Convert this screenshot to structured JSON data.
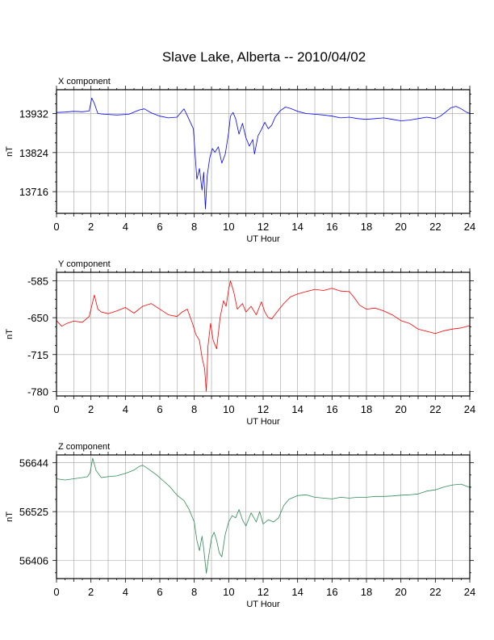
{
  "title": "Slave Lake, Alberta -- 2010/04/02",
  "chart_data": [
    {
      "type": "line",
      "panel_label": "X component",
      "xlabel": "UT Hour",
      "ylabel": "nT",
      "xlim": [
        0,
        24
      ],
      "ylim": [
        13656,
        13998
      ],
      "x_ticks": [
        0,
        2,
        4,
        6,
        8,
        10,
        12,
        14,
        16,
        18,
        20,
        22,
        24
      ],
      "y_ticks": [
        13932,
        13824,
        13716
      ],
      "grid": true,
      "color": "#0000ff",
      "series": [
        {
          "x": [
            0,
            0.5,
            1,
            1.5,
            1.9,
            2.05,
            2.2,
            2.4,
            2.8,
            3.5,
            4.2,
            4.8,
            5.1,
            5.5,
            6,
            6.5,
            7,
            7.4,
            7.6,
            7.8,
            7.95,
            8.05,
            8.15,
            8.3,
            8.45,
            8.55,
            8.65,
            8.75,
            8.9,
            9.05,
            9.2,
            9.4,
            9.6,
            9.8,
            9.9,
            10,
            10.1,
            10.25,
            10.4,
            10.6,
            10.8,
            11,
            11.2,
            11.4,
            11.5,
            11.7,
            11.9,
            12.1,
            12.3,
            12.5,
            12.7,
            13,
            13.3,
            13.6,
            14,
            14.5,
            15,
            15.5,
            16,
            16.5,
            17,
            17.5,
            18,
            18.5,
            19,
            19.5,
            20,
            20.5,
            21,
            21.5,
            22,
            22.3,
            22.6,
            22.9,
            23.2,
            23.5,
            23.8,
            24
          ],
          "y": [
            13935,
            13936,
            13938,
            13937,
            13939,
            13975,
            13960,
            13932,
            13930,
            13928,
            13930,
            13942,
            13945,
            13934,
            13925,
            13920,
            13922,
            13945,
            13926,
            13905,
            13890,
            13820,
            13750,
            13780,
            13720,
            13770,
            13668,
            13760,
            13810,
            13835,
            13825,
            13840,
            13795,
            13820,
            13850,
            13880,
            13925,
            13935,
            13918,
            13875,
            13905,
            13865,
            13842,
            13860,
            13820,
            13870,
            13888,
            13908,
            13890,
            13900,
            13922,
            13940,
            13950,
            13946,
            13938,
            13932,
            13930,
            13928,
            13925,
            13920,
            13922,
            13918,
            13916,
            13918,
            13920,
            13916,
            13912,
            13914,
            13918,
            13922,
            13918,
            13925,
            13936,
            13948,
            13952,
            13945,
            13936,
            13932
          ]
        }
      ]
    },
    {
      "type": "line",
      "panel_label": "Y component",
      "xlabel": "UT Hour",
      "ylabel": "nT",
      "xlim": [
        0,
        24
      ],
      "ylim": [
        -788,
        -570
      ],
      "x_ticks": [
        0,
        2,
        4,
        6,
        8,
        10,
        12,
        14,
        16,
        18,
        20,
        22,
        24
      ],
      "y_ticks": [
        -585,
        -650,
        -715,
        -780
      ],
      "grid": true,
      "color": "#ff0000",
      "series": [
        {
          "x": [
            0,
            0.3,
            0.6,
            1,
            1.5,
            1.9,
            2.2,
            2.4,
            2.6,
            3,
            3.5,
            4,
            4.5,
            5,
            5.5,
            6,
            6.5,
            7,
            7.3,
            7.6,
            7.9,
            8.1,
            8.3,
            8.45,
            8.6,
            8.7,
            8.8,
            8.95,
            9.1,
            9.3,
            9.5,
            9.7,
            9.85,
            10,
            10.1,
            10.3,
            10.5,
            10.8,
            11,
            11.3,
            11.6,
            11.9,
            12.1,
            12.3,
            12.5,
            12.8,
            13.2,
            13.6,
            14,
            14.5,
            15,
            15.5,
            16,
            16.5,
            17,
            17.3,
            17.6,
            18,
            18.5,
            19,
            19.5,
            20,
            20.5,
            21,
            21.5,
            22,
            22.5,
            23,
            23.5,
            24
          ],
          "y": [
            -655,
            -665,
            -660,
            -656,
            -658,
            -648,
            -610,
            -635,
            -640,
            -643,
            -638,
            -632,
            -642,
            -630,
            -625,
            -635,
            -645,
            -648,
            -640,
            -635,
            -660,
            -680,
            -690,
            -720,
            -740,
            -780,
            -700,
            -660,
            -690,
            -705,
            -650,
            -620,
            -630,
            -600,
            -585,
            -605,
            -635,
            -625,
            -640,
            -630,
            -645,
            -622,
            -640,
            -650,
            -652,
            -640,
            -625,
            -613,
            -608,
            -604,
            -600,
            -602,
            -598,
            -603,
            -604,
            -615,
            -628,
            -635,
            -633,
            -638,
            -645,
            -655,
            -660,
            -670,
            -674,
            -678,
            -673,
            -670,
            -668,
            -664
          ]
        }
      ]
    },
    {
      "type": "line",
      "panel_label": "Z component",
      "xlabel": "UT Hour",
      "ylabel": "nT",
      "xlim": [
        0,
        24
      ],
      "ylim": [
        56362,
        56663
      ],
      "x_ticks": [
        0,
        2,
        4,
        6,
        8,
        10,
        12,
        14,
        16,
        18,
        20,
        22,
        24
      ],
      "y_ticks": [
        56644,
        56525,
        56406
      ],
      "grid": true,
      "color": "#2e8b57",
      "series": [
        {
          "x": [
            0,
            0.5,
            1,
            1.5,
            1.8,
            1.95,
            2.1,
            2.3,
            2.6,
            3,
            3.5,
            4,
            4.5,
            4.8,
            5,
            5.3,
            5.8,
            6.2,
            6.6,
            7,
            7.4,
            7.7,
            8,
            8.15,
            8.3,
            8.45,
            8.55,
            8.7,
            8.85,
            9,
            9.15,
            9.3,
            9.45,
            9.6,
            9.8,
            10,
            10.2,
            10.4,
            10.6,
            10.8,
            11,
            11.3,
            11.6,
            11.8,
            12,
            12.3,
            12.6,
            12.9,
            13.2,
            13.5,
            14,
            14.5,
            15,
            15.5,
            16,
            16.5,
            17,
            17.5,
            18,
            18.5,
            19,
            19.5,
            20,
            20.5,
            21,
            21.5,
            22,
            22.5,
            23,
            23.5,
            24
          ],
          "y": [
            56605,
            56602,
            56605,
            56608,
            56610,
            56620,
            56655,
            56625,
            56608,
            56610,
            56612,
            56618,
            56626,
            56635,
            56638,
            56630,
            56615,
            56600,
            56585,
            56565,
            56552,
            56530,
            56500,
            56455,
            56430,
            56465,
            56435,
            56375,
            56420,
            56460,
            56475,
            56455,
            56425,
            56415,
            56470,
            56500,
            56515,
            56510,
            56530,
            56505,
            56490,
            56522,
            56500,
            56525,
            56495,
            56505,
            56500,
            56510,
            56540,
            56555,
            56564,
            56566,
            56560,
            56558,
            56556,
            56560,
            56558,
            56560,
            56560,
            56562,
            56562,
            56563,
            56565,
            56566,
            56568,
            56575,
            56578,
            56585,
            56590,
            56592,
            56584
          ]
        }
      ]
    }
  ]
}
